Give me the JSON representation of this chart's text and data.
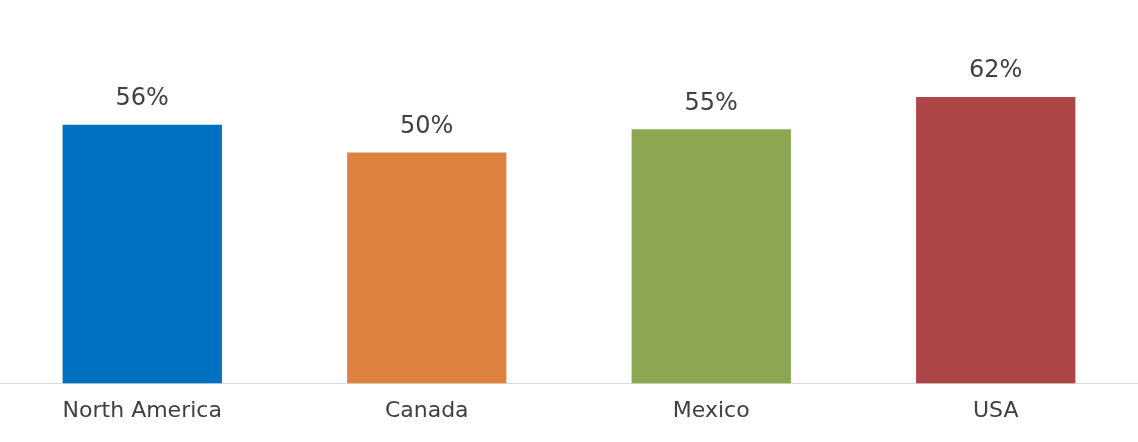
{
  "chart_data": {
    "type": "bar",
    "categories": [
      "North America",
      "Canada",
      "Mexico",
      "USA"
    ],
    "values": [
      56,
      50,
      55,
      62
    ],
    "colors": [
      "#0070c0",
      "#dd8240",
      "#8ba752",
      "#ad4646"
    ],
    "value_labels": [
      "56%",
      "50%",
      "55%",
      "62%"
    ],
    "tick_labels": "x",
    "grid": false,
    "legend": false
  }
}
